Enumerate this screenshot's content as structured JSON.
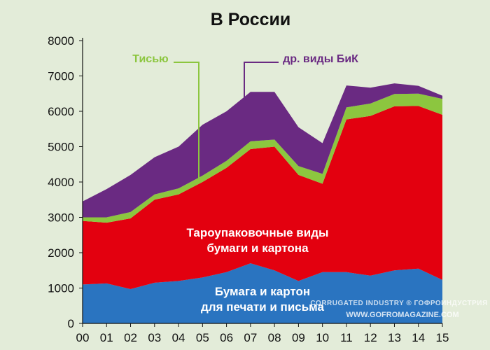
{
  "chart_data": {
    "type": "area",
    "stacked": true,
    "title": "В России",
    "x": [
      "00",
      "01",
      "02",
      "03",
      "04",
      "05",
      "06",
      "07",
      "08",
      "09",
      "10",
      "11",
      "12",
      "13",
      "14",
      "15"
    ],
    "ylim": [
      0,
      8000
    ],
    "yticks": [
      0,
      1000,
      2000,
      3000,
      4000,
      5000,
      6000,
      7000,
      8000
    ],
    "grid": false,
    "series": [
      {
        "name": "Бумага и картон для печати и письма",
        "label_lines": [
          "Бумага и картон",
          "для печати и письма"
        ],
        "color": "#2a74c0",
        "values": [
          1100,
          1130,
          970,
          1150,
          1200,
          1300,
          1450,
          1700,
          1500,
          1200,
          1450,
          1450,
          1350,
          1500,
          1550,
          1230
        ]
      },
      {
        "name": "Тароупаковочные виды бумаги и картона",
        "label_lines": [
          "Тароупаковочные виды",
          "бумаги и картона"
        ],
        "color": "#e3000f",
        "values": [
          1800,
          1720,
          2000,
          2350,
          2450,
          2700,
          2950,
          3230,
          3500,
          3000,
          2500,
          4320,
          4520,
          4640,
          4600,
          4670
        ]
      },
      {
        "name": "Тисью",
        "label_lines": [
          "Тисью"
        ],
        "color": "#8cc63f",
        "values": [
          100,
          150,
          180,
          150,
          170,
          180,
          200,
          220,
          200,
          250,
          280,
          340,
          350,
          350,
          350,
          450
        ]
      },
      {
        "name": "др. виды БиК",
        "label_lines": [
          "др. виды БиК"
        ],
        "color": "#6a2a82",
        "values": [
          450,
          800,
          1050,
          1050,
          1180,
          1440,
          1400,
          1400,
          1350,
          1100,
          870,
          620,
          450,
          300,
          220,
          90
        ]
      }
    ],
    "watermark": {
      "brand": "CORRUGATED INDUSTRY ® ГОФРОИНДУСТРИЯ",
      "url": "WWW.GOFROMAGAZINE.COM"
    }
  }
}
